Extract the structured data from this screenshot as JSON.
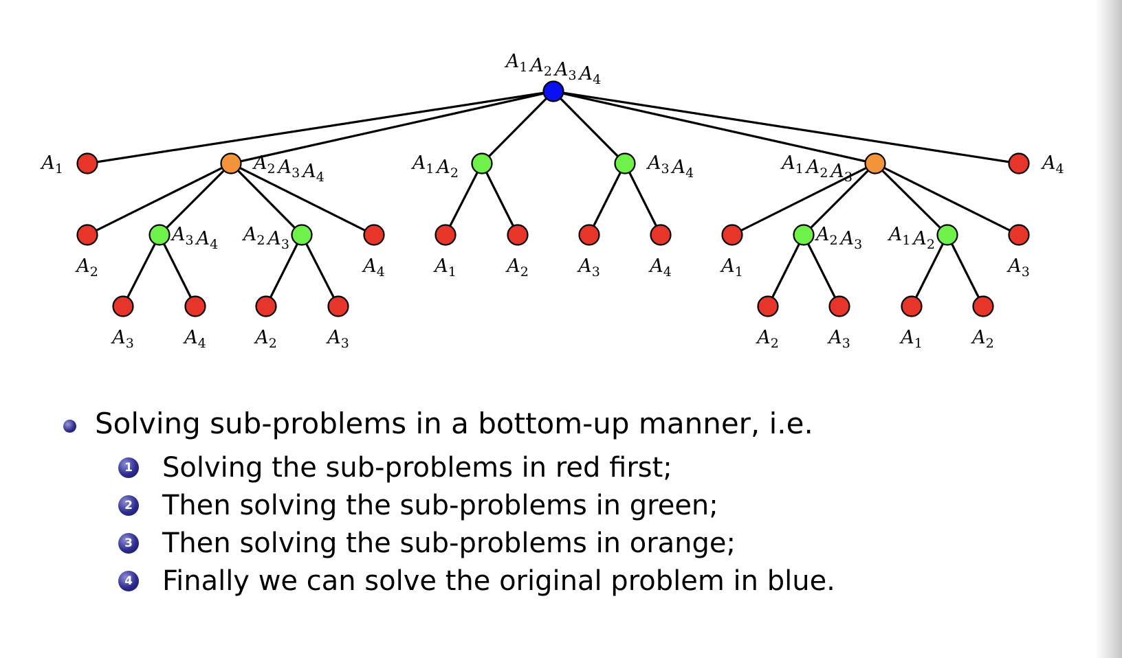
{
  "tree": {
    "colors": {
      "red": "#e8352a",
      "green": "#6ef24a",
      "orange": "#f3943a",
      "blue": "#0a10f0"
    },
    "nodes": [
      {
        "id": "root",
        "color": "blue",
        "label": [
          [
            "A",
            "1"
          ],
          [
            "A",
            "2"
          ],
          [
            "A",
            "3"
          ],
          [
            "A",
            "4"
          ]
        ]
      },
      {
        "id": "n-a1",
        "color": "red",
        "label": [
          [
            "A",
            "1"
          ]
        ]
      },
      {
        "id": "n-a234",
        "color": "orange",
        "label": [
          [
            "A",
            "2"
          ],
          [
            "A",
            "3"
          ],
          [
            "A",
            "4"
          ]
        ]
      },
      {
        "id": "n-a12",
        "color": "green",
        "label": [
          [
            "A",
            "1"
          ],
          [
            "A",
            "2"
          ]
        ]
      },
      {
        "id": "n-a34",
        "color": "green",
        "label": [
          [
            "A",
            "3"
          ],
          [
            "A",
            "4"
          ]
        ]
      },
      {
        "id": "n-a123",
        "color": "orange",
        "label": [
          [
            "A",
            "1"
          ],
          [
            "A",
            "2"
          ],
          [
            "A",
            "3"
          ]
        ]
      },
      {
        "id": "n-a4",
        "color": "red",
        "label": [
          [
            "A",
            "4"
          ]
        ]
      },
      {
        "id": "l-a2-1",
        "color": "red",
        "label": [
          [
            "A",
            "2"
          ]
        ]
      },
      {
        "id": "g-a34",
        "color": "green",
        "label": [
          [
            "A",
            "3"
          ],
          [
            "A",
            "4"
          ]
        ]
      },
      {
        "id": "g-a23",
        "color": "green",
        "label": [
          [
            "A",
            "2"
          ],
          [
            "A",
            "3"
          ]
        ]
      },
      {
        "id": "l-a4-1",
        "color": "red",
        "label": [
          [
            "A",
            "4"
          ]
        ]
      },
      {
        "id": "l-a1-2",
        "color": "red",
        "label": [
          [
            "A",
            "1"
          ]
        ]
      },
      {
        "id": "l-a2-2",
        "color": "red",
        "label": [
          [
            "A",
            "2"
          ]
        ]
      },
      {
        "id": "l-a3-2",
        "color": "red",
        "label": [
          [
            "A",
            "3"
          ]
        ]
      },
      {
        "id": "l-a4-2",
        "color": "red",
        "label": [
          [
            "A",
            "4"
          ]
        ]
      },
      {
        "id": "l-a1-3",
        "color": "red",
        "label": [
          [
            "A",
            "1"
          ]
        ]
      },
      {
        "id": "g-a23-r",
        "color": "green",
        "label": [
          [
            "A",
            "2"
          ],
          [
            "A",
            "3"
          ]
        ]
      },
      {
        "id": "g-a12-r",
        "color": "green",
        "label": [
          [
            "A",
            "1"
          ],
          [
            "A",
            "2"
          ]
        ]
      },
      {
        "id": "l-a3-3",
        "color": "red",
        "label": [
          [
            "A",
            "3"
          ]
        ]
      },
      {
        "id": "b-a3-1",
        "color": "red",
        "label": [
          [
            "A",
            "3"
          ]
        ]
      },
      {
        "id": "b-a4-1",
        "color": "red",
        "label": [
          [
            "A",
            "4"
          ]
        ]
      },
      {
        "id": "b-a2-2",
        "color": "red",
        "label": [
          [
            "A",
            "2"
          ]
        ]
      },
      {
        "id": "b-a3-2",
        "color": "red",
        "label": [
          [
            "A",
            "3"
          ]
        ]
      },
      {
        "id": "b-a2-3",
        "color": "red",
        "label": [
          [
            "A",
            "2"
          ]
        ]
      },
      {
        "id": "b-a3-3",
        "color": "red",
        "label": [
          [
            "A",
            "3"
          ]
        ]
      },
      {
        "id": "b-a1-4",
        "color": "red",
        "label": [
          [
            "A",
            "1"
          ]
        ]
      },
      {
        "id": "b-a2-4",
        "color": "red",
        "label": [
          [
            "A",
            "2"
          ]
        ]
      }
    ],
    "edges": [
      [
        "root",
        "n-a1"
      ],
      [
        "root",
        "n-a234"
      ],
      [
        "root",
        "n-a12"
      ],
      [
        "root",
        "n-a34"
      ],
      [
        "root",
        "n-a123"
      ],
      [
        "root",
        "n-a4"
      ],
      [
        "n-a234",
        "l-a2-1"
      ],
      [
        "n-a234",
        "g-a34"
      ],
      [
        "n-a234",
        "g-a23"
      ],
      [
        "n-a234",
        "l-a4-1"
      ],
      [
        "n-a12",
        "l-a1-2"
      ],
      [
        "n-a12",
        "l-a2-2"
      ],
      [
        "n-a34",
        "l-a3-2"
      ],
      [
        "n-a34",
        "l-a4-2"
      ],
      [
        "n-a123",
        "l-a1-3"
      ],
      [
        "n-a123",
        "g-a23-r"
      ],
      [
        "n-a123",
        "g-a12-r"
      ],
      [
        "n-a123",
        "l-a3-3"
      ],
      [
        "g-a34",
        "b-a3-1"
      ],
      [
        "g-a34",
        "b-a4-1"
      ],
      [
        "g-a23",
        "b-a2-2"
      ],
      [
        "g-a23",
        "b-a3-2"
      ],
      [
        "g-a23-r",
        "b-a2-3"
      ],
      [
        "g-a23-r",
        "b-a3-3"
      ],
      [
        "g-a12-r",
        "b-a1-4"
      ],
      [
        "g-a12-r",
        "b-a2-4"
      ]
    ]
  },
  "bullets": {
    "main": "Solving sub-problems in a bottom-up manner, i.e.",
    "items": [
      {
        "num": "1",
        "text": "Solving the sub-problems in red first;"
      },
      {
        "num": "2",
        "text": "Then solving the sub-problems in green;"
      },
      {
        "num": "3",
        "text": "Then solving the sub-problems in orange;"
      },
      {
        "num": "4",
        "text": "Finally we can solve the original problem in blue."
      }
    ]
  }
}
